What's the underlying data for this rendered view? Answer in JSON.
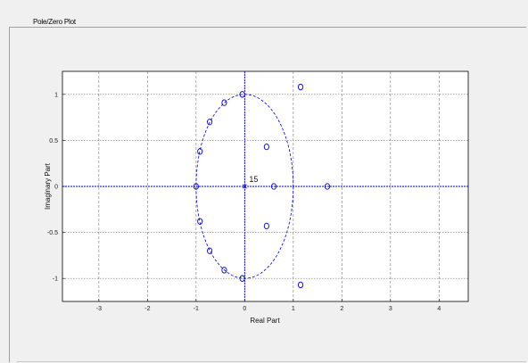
{
  "window": {
    "panel_title": "Pole/Zero Plot"
  },
  "chart_data": {
    "type": "scatter",
    "title": "",
    "xlabel": "Real Part",
    "ylabel": "Imaginary Part",
    "xlim": [
      -3.75,
      4.6
    ],
    "ylim": [
      -1.25,
      1.25
    ],
    "x_ticks": [
      -3,
      -2,
      -1,
      0,
      1,
      2,
      3,
      4
    ],
    "y_ticks": [
      -1,
      -0.5,
      0,
      0.5,
      1
    ],
    "x_tick_labels": [
      "-3",
      "-2",
      "-1",
      "0",
      "1",
      "2",
      "3",
      "4"
    ],
    "y_tick_labels": [
      "-1",
      "-0.5",
      "0",
      "0.5",
      "1"
    ],
    "grid": true,
    "unit_circle": true,
    "zeros": [
      {
        "x": -0.05,
        "y": 1.0
      },
      {
        "x": -0.42,
        "y": 0.91
      },
      {
        "x": -0.72,
        "y": 0.7
      },
      {
        "x": -0.92,
        "y": 0.38
      },
      {
        "x": -1.0,
        "y": 0.0
      },
      {
        "x": -0.92,
        "y": -0.38
      },
      {
        "x": -0.72,
        "y": -0.7
      },
      {
        "x": -0.42,
        "y": -0.91
      },
      {
        "x": -0.05,
        "y": -1.0
      },
      {
        "x": 0.45,
        "y": 0.43
      },
      {
        "x": 0.45,
        "y": -0.43
      },
      {
        "x": 0.6,
        "y": 0.0
      },
      {
        "x": 1.7,
        "y": 0.0
      },
      {
        "x": 1.15,
        "y": 1.08
      },
      {
        "x": 1.15,
        "y": -1.07
      }
    ],
    "poles": [
      {
        "x": 0.0,
        "y": 0.0,
        "multiplicity": 15
      }
    ],
    "pole_label": "15"
  },
  "colors": {
    "marker": "#0000cc",
    "grid": "#777777",
    "axis_line": "#0000cc"
  }
}
